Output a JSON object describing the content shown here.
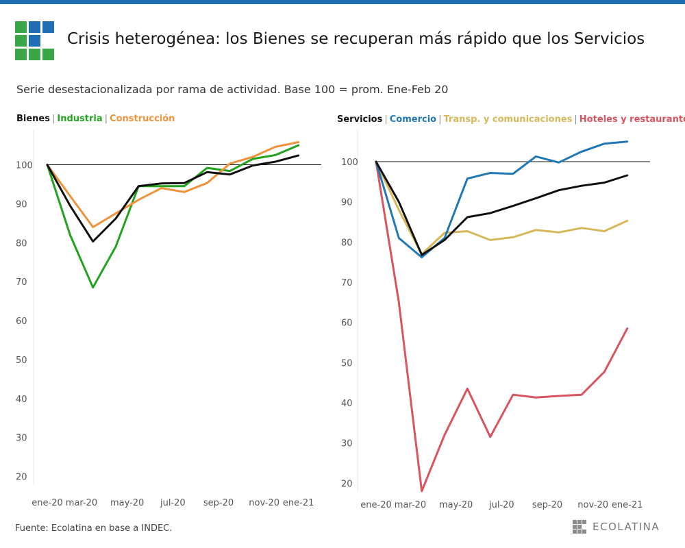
{
  "colors": {
    "bar": "#1f6db3",
    "logo_blue": "#1f6db3",
    "logo_green": "#3aa648"
  },
  "title": "Crisis heterogénea: los Bienes se recuperan más rápido que los Servicios",
  "subtitle": "Serie desestacionalizada por rama de actividad. Base 100 = prom. Ene-Feb 20",
  "source": "Fuente: Ecolatina en base a INDEC.",
  "brand": "ECOLATINA",
  "legends": {
    "left": [
      {
        "label": "Bienes",
        "color": "#111111"
      },
      {
        "label": "Industria",
        "color": "#22a31e"
      },
      {
        "label": "Construcción",
        "color": "#f0923a"
      }
    ],
    "right": [
      {
        "label": "Servicios",
        "color": "#111111"
      },
      {
        "label": "Comercio",
        "color": "#1f78b4"
      },
      {
        "label": "Transp. y comunicaciones",
        "color": "#d6b85a"
      },
      {
        "label": "Hoteles y restaurantes",
        "color": "#d9545e"
      }
    ]
  },
  "chart_data": [
    {
      "type": "line",
      "title": "Bienes | Industria | Construcción",
      "x": [
        "ene-20",
        "feb-20",
        "mar-20",
        "abr-20",
        "may-20",
        "jun-20",
        "jul-20",
        "ago-20",
        "sep-20",
        "oct-20",
        "nov-20",
        "dic-20",
        "ene-21"
      ],
      "xticks": [
        {
          "label": "ene-20",
          "index": 0
        },
        {
          "label": "mar-20",
          "index": 1.5
        },
        {
          "label": "may-20",
          "index": 3.5
        },
        {
          "label": "jul-20",
          "index": 5.5
        },
        {
          "label": "sep-20",
          "index": 7.5
        },
        {
          "label": "nov-20",
          "index": 9.5
        },
        {
          "label": "ene-21",
          "index": 11
        }
      ],
      "yticks": [
        20,
        30,
        40,
        50,
        60,
        70,
        80,
        90,
        100
      ],
      "ylim": [
        18,
        108
      ],
      "reference_line": 100,
      "series": [
        {
          "name": "Industria",
          "color": "#22a31e",
          "values": [
            100,
            82,
            68.5,
            79,
            94.5,
            94.5,
            94.5,
            99.2,
            98.4,
            101.5,
            102.5,
            105,
            null
          ]
        },
        {
          "name": "Construcción",
          "color": "#f0923a",
          "values": [
            100,
            92,
            84,
            87.5,
            91,
            94,
            93,
            95.3,
            100.3,
            102,
            104.6,
            105.8,
            null
          ]
        },
        {
          "name": "Bienes",
          "color": "#111111",
          "values": [
            100,
            89.5,
            80.3,
            86.2,
            94.5,
            95.2,
            95.3,
            98.1,
            97.5,
            99.8,
            100.8,
            102.4,
            null
          ]
        }
      ]
    },
    {
      "type": "line",
      "title": "Servicios | Comercio | Transp. y comunicaciones | Hoteles y restaurantes",
      "x": [
        "ene-20",
        "feb-20",
        "mar-20",
        "abr-20",
        "may-20",
        "jun-20",
        "jul-20",
        "ago-20",
        "sep-20",
        "oct-20",
        "nov-20",
        "dic-20",
        "ene-21"
      ],
      "xticks": [
        {
          "label": "ene-20",
          "index": 0
        },
        {
          "label": "mar-20",
          "index": 1.5
        },
        {
          "label": "may-20",
          "index": 3.5
        },
        {
          "label": "jul-20",
          "index": 5.5
        },
        {
          "label": "sep-20",
          "index": 7.5
        },
        {
          "label": "nov-20",
          "index": 9.5
        },
        {
          "label": "ene-21",
          "index": 11
        }
      ],
      "yticks": [
        20,
        30,
        40,
        50,
        60,
        70,
        80,
        90,
        100
      ],
      "ylim": [
        18,
        107
      ],
      "reference_line": 100,
      "series": [
        {
          "name": "Hoteles y restaurantes",
          "color": "#d9545e",
          "values": [
            100,
            65,
            18,
            32,
            43.5,
            31.5,
            42,
            41.3,
            41.7,
            42,
            47.7,
            58.5,
            null
          ]
        },
        {
          "name": "Transp. y comunicaciones",
          "color": "#d6b85a",
          "values": [
            100,
            88,
            77,
            82.3,
            82.7,
            80.5,
            81.2,
            83,
            82.4,
            83.5,
            82.7,
            85.3,
            null
          ]
        },
        {
          "name": "Comercio",
          "color": "#1f78b4",
          "values": [
            100,
            81,
            76.2,
            81,
            95.8,
            97.2,
            97,
            101.3,
            99.8,
            102.5,
            104.5,
            105,
            null
          ]
        },
        {
          "name": "Servicios",
          "color": "#111111",
          "values": [
            100,
            90,
            76.8,
            80.5,
            86.2,
            87.2,
            89,
            90.9,
            92.9,
            94,
            94.8,
            96.6,
            null
          ]
        }
      ]
    }
  ]
}
